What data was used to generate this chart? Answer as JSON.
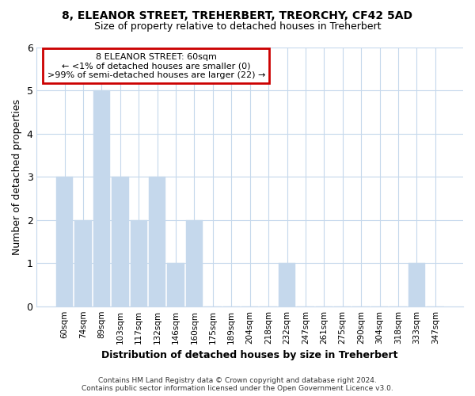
{
  "title1": "8, ELEANOR STREET, TREHERBERT, TREORCHY, CF42 5AD",
  "title2": "Size of property relative to detached houses in Treherbert",
  "xlabel": "Distribution of detached houses by size in Treherbert",
  "ylabel": "Number of detached properties",
  "footer1": "Contains HM Land Registry data © Crown copyright and database right 2024.",
  "footer2": "Contains public sector information licensed under the Open Government Licence v3.0.",
  "categories": [
    "60sqm",
    "74sqm",
    "89sqm",
    "103sqm",
    "117sqm",
    "132sqm",
    "146sqm",
    "160sqm",
    "175sqm",
    "189sqm",
    "204sqm",
    "218sqm",
    "232sqm",
    "247sqm",
    "261sqm",
    "275sqm",
    "290sqm",
    "304sqm",
    "318sqm",
    "333sqm",
    "347sqm"
  ],
  "values": [
    3,
    2,
    5,
    3,
    2,
    3,
    1,
    2,
    0,
    0,
    0,
    0,
    1,
    0,
    0,
    0,
    0,
    0,
    0,
    1,
    0
  ],
  "bar_color": "#c5d8ec",
  "annotation_box_text": "8 ELEANOR STREET: 60sqm\n← <1% of detached houses are smaller (0)\n>99% of semi-detached houses are larger (22) →",
  "annotation_box_color": "#ffffff",
  "annotation_box_edge_color": "#cc0000",
  "background_color": "#ffffff",
  "plot_bg_color": "#ffffff",
  "grid_color": "#c5d8ec",
  "ylim": [
    0,
    6
  ],
  "yticks": [
    0,
    1,
    2,
    3,
    4,
    5,
    6
  ]
}
